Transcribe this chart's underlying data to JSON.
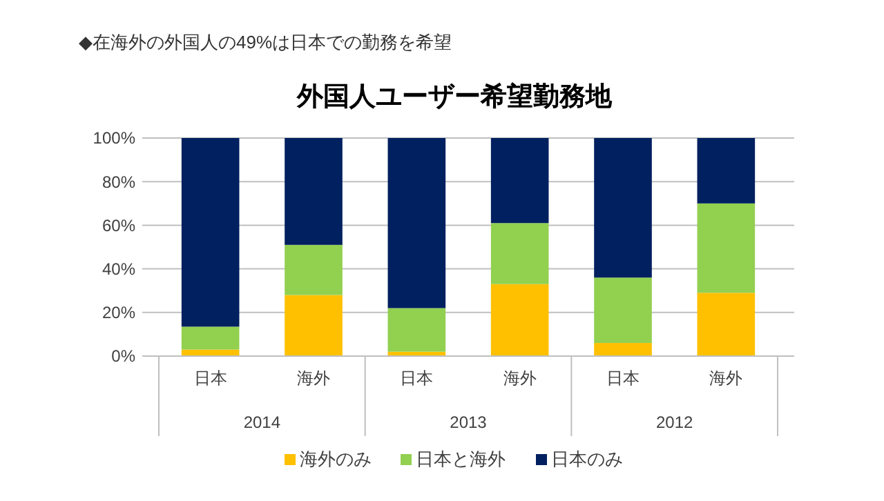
{
  "chart_data": {
    "type": "bar",
    "title": "外国人ユーザー希望勤務地",
    "subtitle": "◆在海外の外国人の49%は日本での勤務を希望",
    "categories": [
      "日本",
      "海外",
      "日本",
      "海外",
      "日本",
      "海外"
    ],
    "series": [
      {
        "name": "海外のみ",
        "color": "#ffc000",
        "values": [
          3,
          28,
          2,
          33,
          6,
          29
        ]
      },
      {
        "name": "日本と海外",
        "color": "#92d050",
        "values": [
          10.5,
          23,
          20,
          28,
          30,
          41
        ]
      },
      {
        "name": "日本のみ",
        "color": "#002060",
        "values": [
          86.5,
          49,
          78,
          39,
          64,
          30
        ]
      }
    ],
    "stacked": true,
    "ylim": [
      0,
      100
    ],
    "yticks": [
      {
        "value": 0,
        "label": "0%"
      },
      {
        "value": 20,
        "label": "20%"
      },
      {
        "value": 40,
        "label": "40%"
      },
      {
        "value": 60,
        "label": "60%"
      },
      {
        "value": 80,
        "label": "80%"
      },
      {
        "value": 100,
        "label": "100%"
      }
    ],
    "grid": "y",
    "legend": "bottom",
    "annotations": [
      "2014",
      "2013",
      "2012"
    ]
  }
}
